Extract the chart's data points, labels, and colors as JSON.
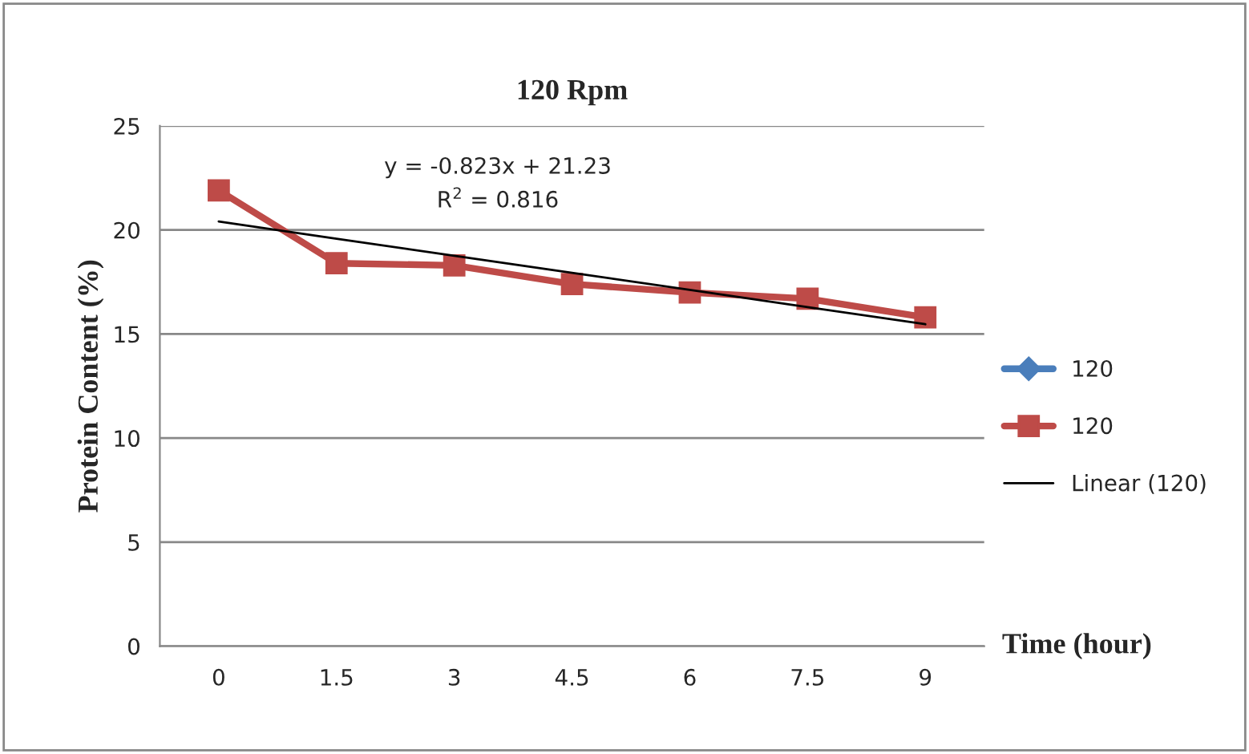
{
  "chart_data": {
    "type": "line",
    "title": "120 Rpm",
    "xlabel": "Time (hour)",
    "ylabel": "Protein Content (%)",
    "categories": [
      "0",
      "1.5",
      "3",
      "4.5",
      "6",
      "7.5",
      "9"
    ],
    "series": [
      {
        "name": "120",
        "color": "#4a7ebb",
        "marker": "diamond",
        "values": [
          null,
          null,
          null,
          null,
          null,
          null,
          null
        ]
      },
      {
        "name": "120",
        "color": "#be4b48",
        "marker": "square",
        "values": [
          21.9,
          18.4,
          18.3,
          17.4,
          17.0,
          16.7,
          15.8
        ]
      },
      {
        "name": "Linear (120)",
        "color": "#000000",
        "marker": "none",
        "values": [
          20.41,
          19.58,
          18.76,
          17.94,
          17.12,
          16.29,
          15.47
        ]
      }
    ],
    "annotations": [
      "y = -0.823x + 21.23",
      "R$^{2}$ = 0.816"
    ],
    "ylim": [
      0,
      25
    ],
    "yticks": [
      0,
      5,
      10,
      15,
      20,
      25
    ],
    "grid": "y",
    "legend": "right"
  }
}
